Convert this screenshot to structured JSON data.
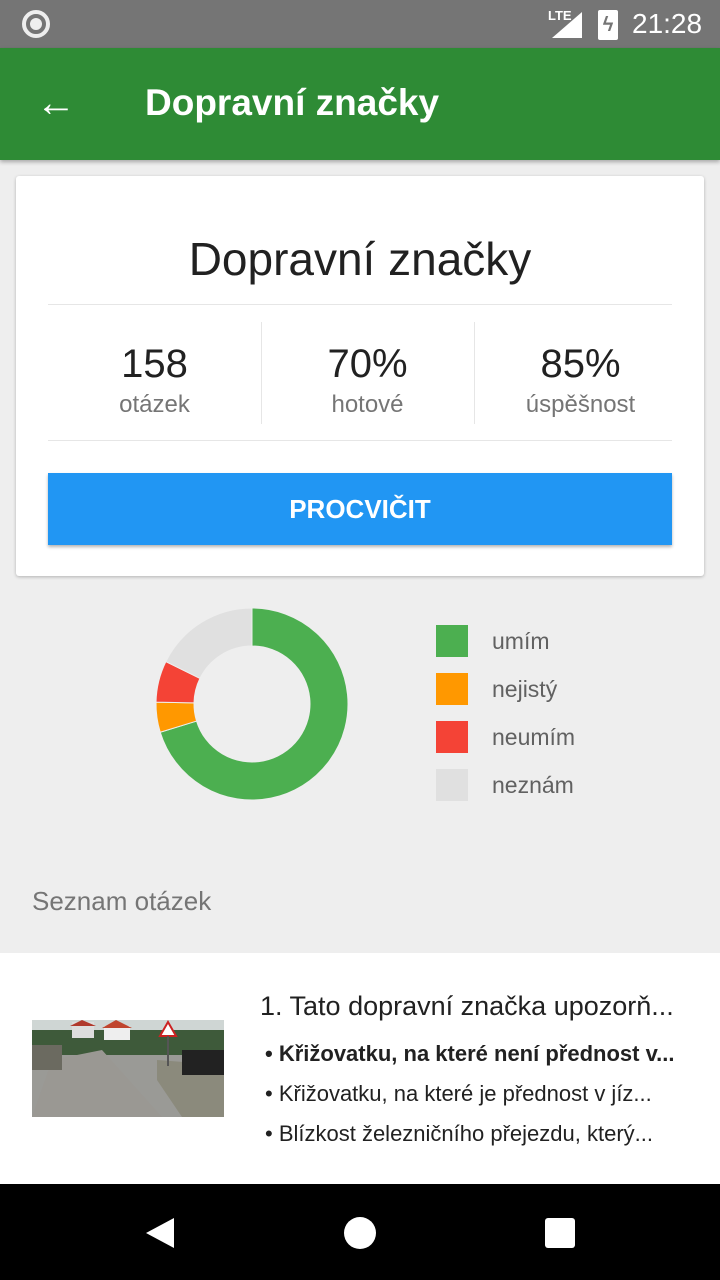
{
  "status_bar": {
    "network": "LTE",
    "time": "21:28"
  },
  "app_bar": {
    "title": "Dopravní značky",
    "back_icon": "arrow-back-icon"
  },
  "card": {
    "title": "Dopravní značky",
    "stats": [
      {
        "value": "158",
        "label": "otázek"
      },
      {
        "value": "70%",
        "label": "hotové"
      },
      {
        "value": "85%",
        "label": "úspěšnost"
      }
    ],
    "button_label": "PROCVIČIT",
    "button_color": "#2196f3"
  },
  "chart_data": {
    "type": "pie",
    "donut": true,
    "categories": [
      "umím",
      "nejistý",
      "neumím",
      "neznám"
    ],
    "values": [
      111,
      8,
      11,
      28
    ],
    "colors": [
      "#4caf50",
      "#ff9800",
      "#f44336",
      "#e0e0e0"
    ],
    "legend_position": "right"
  },
  "list": {
    "heading": "Seznam otázek",
    "items": [
      {
        "question": "1. Tato dopravní značka upozorň...",
        "answers": [
          {
            "text": "• Křižovatku, na které není přednost v...",
            "bold": true
          },
          {
            "text": "• Křižovatku, na které je přednost v jíz...",
            "bold": false
          },
          {
            "text": "• Blízkost železničního přejezdu, který...",
            "bold": false
          }
        ]
      }
    ]
  }
}
